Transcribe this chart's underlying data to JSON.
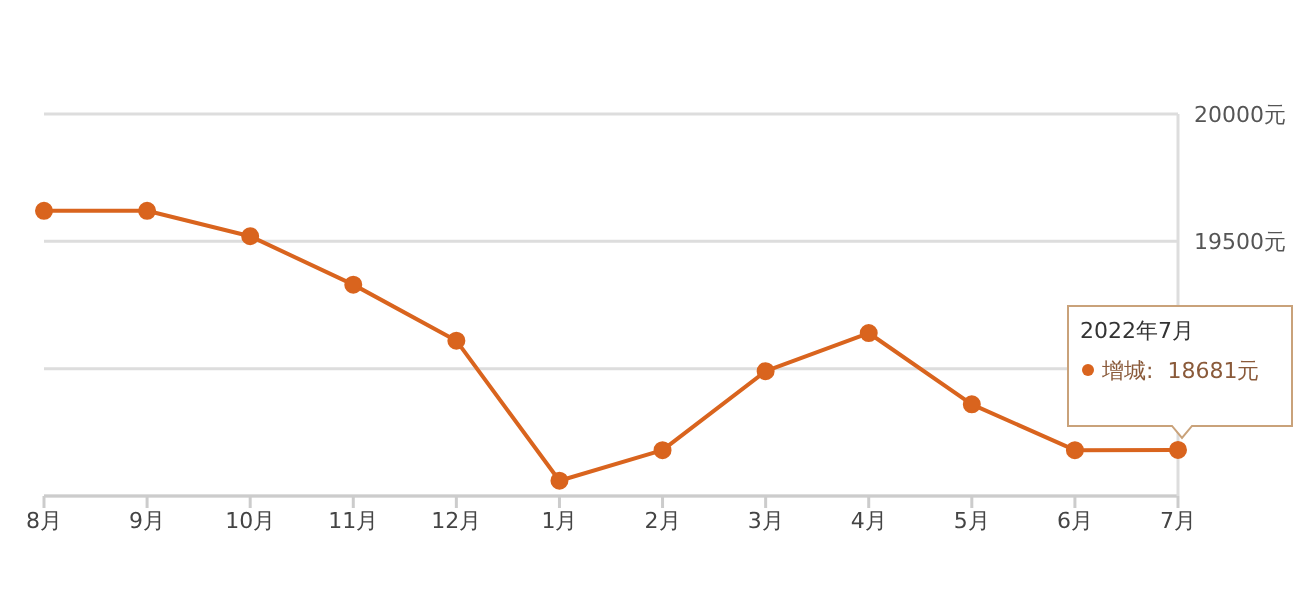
{
  "chart_data": {
    "type": "line",
    "categories": [
      "8月",
      "9月",
      "10月",
      "11月",
      "12月",
      "1月",
      "2月",
      "3月",
      "4月",
      "5月",
      "6月",
      "7月"
    ],
    "series": [
      {
        "color": "#d9641e",
        "values": [
          19620,
          19620,
          19520,
          19330,
          19110,
          18560,
          18680,
          18990,
          19140,
          18860,
          18680,
          18681
        ]
      }
    ],
    "ylim": [
      18500,
      20000
    ],
    "yticks": [
      {
        "value": 18500,
        "label": null
      },
      {
        "value": 19000,
        "label": null
      },
      {
        "value": 19500,
        "label": "19500元"
      },
      {
        "value": 20000,
        "label": "20000元"
      }
    ],
    "grid": "y",
    "marker": "circle",
    "line_style": "solid",
    "annotations": [
      "2022年7月",
      "增城:  18681元"
    ]
  }
}
